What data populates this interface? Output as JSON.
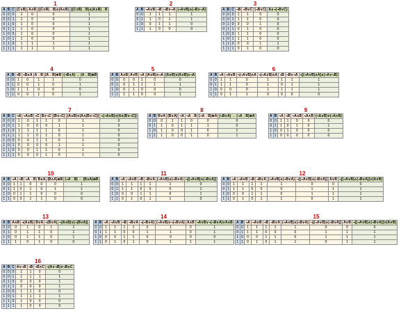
{
  "tables": [
    {
      "number": "1",
      "headers": [
        "A",
        "B",
        "C",
        "(C∨B)",
        "A∧B",
        "((C∨B)→B)∧(A∧B)",
        "((C∨B)→B)∧(A∧B)→B"
      ],
      "kinds": [
        "v",
        "v",
        "v",
        "m",
        "m",
        "m",
        "r"
      ],
      "rows": [
        [
          "0",
          "0",
          "0",
          "1",
          "0",
          "0",
          "1"
        ],
        [
          "0",
          "0",
          "1",
          "1",
          "0",
          "0",
          "1"
        ],
        [
          "0",
          "1",
          "0",
          "1",
          "0",
          "0",
          "1"
        ],
        [
          "0",
          "1",
          "1",
          "1",
          "0",
          "0",
          "1"
        ],
        [
          "1",
          "0",
          "0",
          "1",
          "0",
          "0",
          "1"
        ],
        [
          "1",
          "0",
          "1",
          "1",
          "0",
          "0",
          "1"
        ],
        [
          "1",
          "1",
          "0",
          "1",
          "1",
          "1",
          "1"
        ],
        [
          "1",
          "1",
          "1",
          "1",
          "1",
          "1",
          "1"
        ]
      ]
    },
    {
      "number": "2",
      "headers": [
        "A",
        "B",
        "¬A∨B",
        "¬B",
        "¬B∨¬A",
        "(¬A∨B)∧(¬B∨¬A)"
      ],
      "kinds": [
        "v",
        "v",
        "m",
        "m",
        "m",
        "r"
      ],
      "rows": [
        [
          "0",
          "0",
          "1",
          "1",
          "1",
          "1"
        ],
        [
          "0",
          "1",
          "1",
          "0",
          "1",
          "1"
        ],
        [
          "1",
          "0",
          "0",
          "1",
          "1",
          "0"
        ],
        [
          "1",
          "1",
          "1",
          "0",
          "0",
          "0"
        ]
      ]
    },
    {
      "number": "3",
      "headers": [
        "A",
        "B",
        "C",
        "¬B",
        "¬B∨C",
        "(¬B∨C)",
        "A∧¬(¬B∨C)"
      ],
      "kinds": [
        "v",
        "v",
        "v",
        "m",
        "m",
        "m",
        "r"
      ],
      "rows": [
        [
          "0",
          "0",
          "0",
          "1",
          "1",
          "0",
          "0"
        ],
        [
          "0",
          "0",
          "1",
          "1",
          "1",
          "0",
          "0"
        ],
        [
          "0",
          "1",
          "0",
          "0",
          "0",
          "1",
          "0"
        ],
        [
          "0",
          "1",
          "1",
          "0",
          "1",
          "0",
          "0"
        ],
        [
          "1",
          "0",
          "0",
          "1",
          "1",
          "0",
          "0"
        ],
        [
          "1",
          "0",
          "1",
          "1",
          "1",
          "0",
          "0"
        ],
        [
          "1",
          "1",
          "0",
          "0",
          "0",
          "1",
          "1"
        ],
        [
          "1",
          "1",
          "1",
          "0",
          "1",
          "0",
          "0"
        ]
      ]
    },
    {
      "number": "4",
      "headers": [
        "A",
        "B",
        "¬B",
        "¬B∧A",
        "A→B",
        "(A→B)⊕B",
        "(¬B∧A) ↔ (A→B)⊕B"
      ],
      "kinds": [
        "v",
        "v",
        "m",
        "m",
        "m",
        "m",
        "r"
      ],
      "rows": [
        [
          "0",
          "0",
          "1",
          "0",
          "1",
          "1",
          "0"
        ],
        [
          "0",
          "1",
          "0",
          "0",
          "1",
          "0",
          "1"
        ],
        [
          "1",
          "0",
          "1",
          "1",
          "0",
          "0",
          "0"
        ],
        [
          "1",
          "1",
          "0",
          "0",
          "1",
          "0",
          "1"
        ]
      ]
    },
    {
      "number": "5",
      "headers": [
        "A",
        "B",
        "A∧B",
        "A∨B",
        "¬A",
        "(A∨B)∧¬A",
        "(A∧B)∨(A∨B)∧¬A"
      ],
      "kinds": [
        "v",
        "v",
        "m",
        "m",
        "m",
        "m",
        "r"
      ],
      "rows": [
        [
          "0",
          "0",
          "0",
          "0",
          "1",
          "0",
          "0"
        ],
        [
          "0",
          "1",
          "0",
          "1",
          "1",
          "1",
          "1"
        ],
        [
          "1",
          "0",
          "0",
          "1",
          "0",
          "0",
          "0"
        ],
        [
          "1",
          "1",
          "1",
          "1",
          "0",
          "0",
          "1"
        ]
      ]
    },
    {
      "number": "6",
      "headers": [
        "A",
        "B",
        "¬A",
        "¬A∨B",
        "¬(¬A∨B)∧A",
        "¬(¬A∨B)∧A",
        "¬B",
        "¬B∨¬A",
        "¬[(¬A∨B)∧A]∧(¬A∨¬B)"
      ],
      "kinds": [
        "v",
        "v",
        "m",
        "m",
        "m",
        "m",
        "m",
        "m",
        "r"
      ],
      "rows": [
        [
          "0",
          "0",
          "1",
          "1",
          "0",
          "1",
          "1",
          "1",
          "1"
        ],
        [
          "0",
          "1",
          "1",
          "1",
          "0",
          "1",
          "0",
          "1",
          "1"
        ],
        [
          "1",
          "0",
          "0",
          "0",
          "0",
          "1",
          "1",
          "1",
          "1"
        ],
        [
          "1",
          "1",
          "0",
          "1",
          "1",
          "0",
          "0",
          "0",
          "0"
        ]
      ]
    },
    {
      "number": "7",
      "headers": [
        "A",
        "B",
        "C",
        "¬A",
        "¬A∧B",
        "¬C",
        "B∨¬C",
        "(B∨¬C)",
        "(A∧B)∨(A∧(B∨¬C))",
        "¬(¬A∧B)∨(A∧(B∨¬C))"
      ],
      "kinds": [
        "v",
        "v",
        "v",
        "m",
        "m",
        "m",
        "m",
        "m",
        "m",
        "r"
      ],
      "rows": [
        [
          "0",
          "0",
          "0",
          "1",
          "0",
          "1",
          "1",
          "0",
          "1",
          "0"
        ],
        [
          "0",
          "0",
          "1",
          "1",
          "0",
          "0",
          "0",
          "1",
          "1",
          "0"
        ],
        [
          "0",
          "1",
          "0",
          "1",
          "1",
          "1",
          "1",
          "0",
          "1",
          "0"
        ],
        [
          "0",
          "1",
          "1",
          "1",
          "1",
          "0",
          "1",
          "0",
          "1",
          "0"
        ],
        [
          "1",
          "0",
          "0",
          "0",
          "0",
          "1",
          "1",
          "0",
          "1",
          "0"
        ],
        [
          "1",
          "0",
          "1",
          "0",
          "0",
          "0",
          "0",
          "1",
          "1",
          "0"
        ],
        [
          "1",
          "1",
          "0",
          "0",
          "0",
          "1",
          "1",
          "0",
          "1",
          "0"
        ],
        [
          "1",
          "1",
          "1",
          "0",
          "0",
          "0",
          "1",
          "0",
          "1",
          "0"
        ]
      ]
    },
    {
      "number": "8",
      "headers": [
        "A",
        "B",
        "B∨A",
        "(B∨A)",
        "¬A",
        "¬A→B",
        "(¬A→B)⊕A",
        "(¬B∨A) ↔ (¬A→B)⊕A"
      ],
      "kinds": [
        "v",
        "v",
        "m",
        "m",
        "m",
        "m",
        "m",
        "r"
      ],
      "rows": [
        [
          "0",
          "0",
          "0",
          "1",
          "1",
          "0",
          "0",
          "0"
        ],
        [
          "0",
          "1",
          "1",
          "0",
          "1",
          "1",
          "1",
          "0"
        ],
        [
          "1",
          "0",
          "1",
          "0",
          "0",
          "1",
          "0",
          "1"
        ],
        [
          "1",
          "1",
          "1",
          "0",
          "0",
          "1",
          "0",
          "1"
        ]
      ]
    },
    {
      "number": "9",
      "headers": [
        "A",
        "B",
        "¬A",
        "¬B",
        "¬A∧B",
        "¬A∧B",
        "(¬A∧B)∨(¬A∧B)"
      ],
      "kinds": [
        "v",
        "v",
        "m",
        "m",
        "m",
        "m",
        "r"
      ],
      "rows": [
        [
          "0",
          "0",
          "1",
          "1",
          "0",
          "0",
          "0"
        ],
        [
          "0",
          "1",
          "1",
          "0",
          "1",
          "0",
          "1"
        ],
        [
          "1",
          "0",
          "0",
          "1",
          "0",
          "0",
          "0"
        ],
        [
          "1",
          "1",
          "0",
          "0",
          "0",
          "0",
          "0"
        ]
      ]
    },
    {
      "number": "10",
      "headers": [
        "A",
        "B",
        "¬A",
        "¬B",
        "¬A→B",
        "B∧A",
        "(B∧A)⊕B",
        "(¬A→B) ↔ (B∧A)⊕B"
      ],
      "kinds": [
        "v",
        "v",
        "m",
        "m",
        "m",
        "m",
        "m",
        "r"
      ],
      "rows": [
        [
          "0",
          "0",
          "1",
          "1",
          "0",
          "0",
          "0",
          "1"
        ],
        [
          "0",
          "1",
          "1",
          "0",
          "1",
          "0",
          "1",
          "1"
        ],
        [
          "1",
          "0",
          "0",
          "1",
          "1",
          "0",
          "0",
          "0"
        ],
        [
          "1",
          "1",
          "0",
          "0",
          "1",
          "1",
          "0",
          "0"
        ]
      ]
    },
    {
      "number": "11",
      "headers": [
        "A",
        "B",
        "¬A",
        "¬A∨B",
        "¬B",
        "¬B∨A",
        "(¬A∨B)∧(¬B∨A)",
        "¬[(¬A∨B)∧(¬B∨A)]"
      ],
      "kinds": [
        "v",
        "v",
        "m",
        "m",
        "m",
        "m",
        "m",
        "r"
      ],
      "rows": [
        [
          "0",
          "0",
          "1",
          "1",
          "1",
          "1",
          "1",
          "0"
        ],
        [
          "0",
          "1",
          "1",
          "1",
          "0",
          "0",
          "0",
          "1"
        ],
        [
          "1",
          "0",
          "0",
          "0",
          "1",
          "1",
          "0",
          "1"
        ],
        [
          "1",
          "1",
          "0",
          "1",
          "0",
          "1",
          "1",
          "0"
        ]
      ]
    },
    {
      "number": "12",
      "headers": [
        "A",
        "B",
        "¬A",
        "¬A∨B",
        "¬B",
        "¬B∨A",
        "(¬A∨B)∧(¬B∨A)",
        "¬[(¬A∨B)∧(¬B∨A)]",
        "A∨B",
        "¬[(¬A∨B)∧(¬B∨A)]∨(A∨B)"
      ],
      "kinds": [
        "v",
        "v",
        "m",
        "m",
        "m",
        "m",
        "m",
        "m",
        "m",
        "r"
      ],
      "rows": [
        [
          "0",
          "0",
          "1",
          "1",
          "1",
          "1",
          "1",
          "0",
          "0",
          "0"
        ],
        [
          "0",
          "1",
          "1",
          "1",
          "0",
          "0",
          "0",
          "1",
          "1",
          "1"
        ],
        [
          "1",
          "0",
          "0",
          "0",
          "1",
          "1",
          "0",
          "1",
          "1",
          "1"
        ],
        [
          "1",
          "1",
          "0",
          "1",
          "0",
          "1",
          "1",
          "0",
          "1",
          "1"
        ]
      ]
    },
    {
      "number": "13",
      "headers": [
        "A",
        "B",
        "A∧B",
        "¬(A∧B)",
        "B∨A",
        "¬(B∨A)",
        "¬(A∧B)∨(¬(B∨A))"
      ],
      "kinds": [
        "v",
        "v",
        "m",
        "m",
        "m",
        "m",
        "r"
      ],
      "rows": [
        [
          "0",
          "0",
          "0",
          "1",
          "0",
          "1",
          "1"
        ],
        [
          "0",
          "1",
          "0",
          "1",
          "1",
          "0",
          "1"
        ],
        [
          "1",
          "0",
          "0",
          "1",
          "1",
          "0",
          "1"
        ],
        [
          "1",
          "1",
          "1",
          "0",
          "1",
          "0",
          "0"
        ]
      ]
    },
    {
      "number": "14",
      "headers": [
        "A",
        "B",
        "¬A",
        "¬A∨B",
        "¬B",
        "¬B∨A",
        "¬(¬B∨A)",
        "(¬A∨B)∨¬(¬B∨A)",
        "A∧B",
        "¬A∨B∨¬(¬B∨A)∨A∧B"
      ],
      "kinds": [
        "v",
        "v",
        "m",
        "m",
        "m",
        "m",
        "m",
        "m",
        "m",
        "r"
      ],
      "rows": [
        [
          "0",
          "0",
          "1",
          "1",
          "1",
          "1",
          "0",
          "1",
          "0",
          "1"
        ],
        [
          "0",
          "1",
          "1",
          "1",
          "0",
          "0",
          "1",
          "1",
          "0",
          "1"
        ],
        [
          "1",
          "0",
          "0",
          "0",
          "1",
          "1",
          "0",
          "0",
          "0",
          "0"
        ],
        [
          "1",
          "1",
          "0",
          "1",
          "0",
          "1",
          "0",
          "1",
          "1",
          "1"
        ]
      ]
    },
    {
      "number": "15",
      "headers": [
        "A",
        "B",
        "¬A",
        "¬A∨B",
        "¬B",
        "¬B∨A",
        "(¬A∨B)∧(¬B∨A)",
        "¬[(¬A∨B)∧(¬B∨A)]",
        "A∨B",
        "¬[(¬A∨B)∧(¬B∨A)]∨(A∨B)"
      ],
      "kinds": [
        "v",
        "v",
        "m",
        "m",
        "m",
        "m",
        "m",
        "m",
        "m",
        "r"
      ],
      "rows": [
        [
          "0",
          "0",
          "1",
          "1",
          "1",
          "1",
          "1",
          "0",
          "0",
          "0"
        ],
        [
          "0",
          "1",
          "1",
          "1",
          "0",
          "0",
          "0",
          "1",
          "1",
          "1"
        ],
        [
          "1",
          "0",
          "0",
          "0",
          "1",
          "1",
          "0",
          "1",
          "1",
          "1"
        ],
        [
          "1",
          "1",
          "0",
          "1",
          "0",
          "1",
          "1",
          "0",
          "1",
          "1"
        ]
      ]
    },
    {
      "number": "16",
      "headers": [
        "A",
        "B",
        "C",
        "A∨¬B",
        "¬B",
        "¬B∧C",
        "¬(A∨¬B)∨¬B∧C"
      ],
      "kinds": [
        "v",
        "v",
        "v",
        "m",
        "m",
        "m",
        "r"
      ],
      "rows": [
        [
          "0",
          "0",
          "0",
          "1",
          "1",
          "0",
          "0"
        ],
        [
          "0",
          "0",
          "1",
          "1",
          "1",
          "1",
          "1"
        ],
        [
          "0",
          "1",
          "0",
          "0",
          "0",
          "0",
          "1"
        ],
        [
          "0",
          "1",
          "1",
          "0",
          "0",
          "0",
          "1"
        ],
        [
          "1",
          "0",
          "0",
          "1",
          "1",
          "0",
          "0"
        ],
        [
          "1",
          "0",
          "1",
          "1",
          "1",
          "1",
          "1"
        ],
        [
          "1",
          "1",
          "0",
          "1",
          "0",
          "0",
          "0"
        ],
        [
          "1",
          "1",
          "1",
          "1",
          "0",
          "0",
          "0"
        ]
      ]
    }
  ]
}
